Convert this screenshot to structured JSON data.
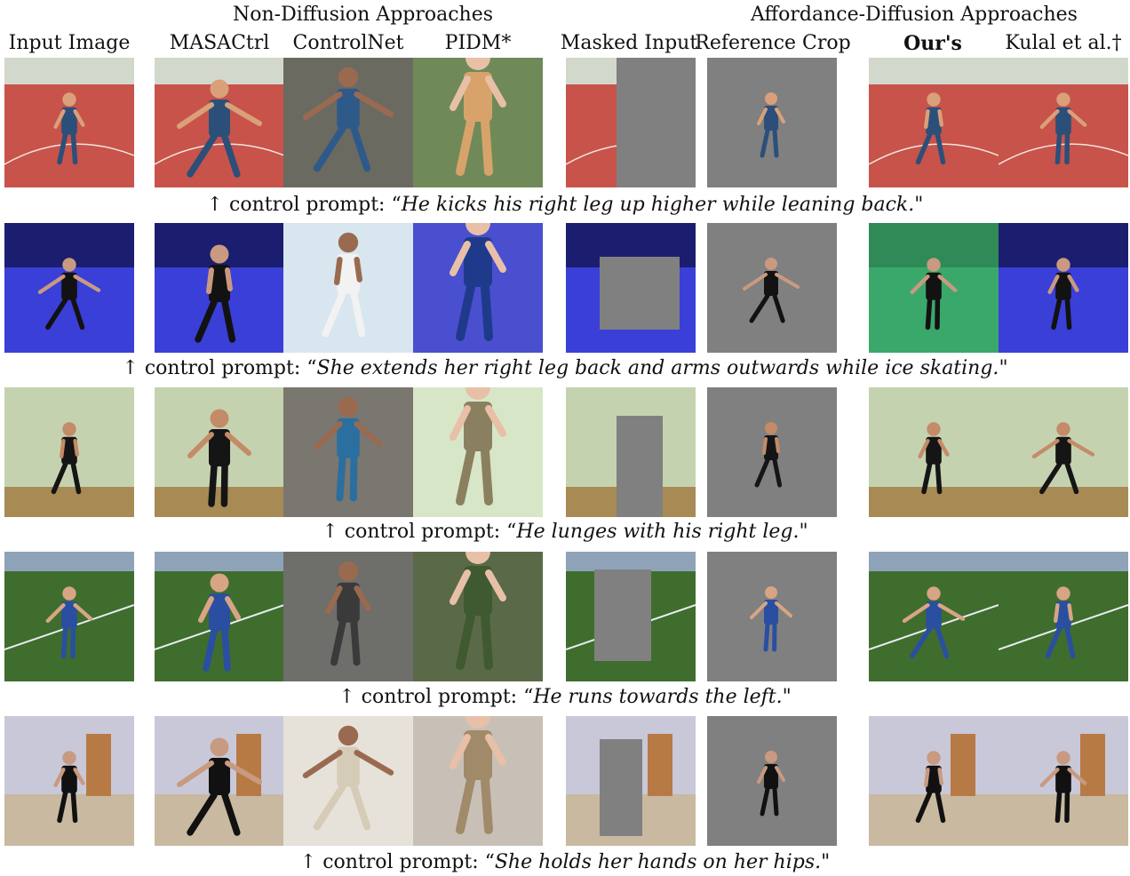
{
  "headers": {
    "groups": [
      "Non-Diffusion Approaches",
      "Affordance-Diffusion Approaches"
    ],
    "columns": [
      "Input Image",
      "MASACtrl",
      "ControlNet",
      "PIDM*",
      "Masked Input",
      "Reference Crop",
      "Our's",
      "Kulal et al.†"
    ]
  },
  "caption_prefix": "↑ control prompt: “",
  "caption_suffix": "\"",
  "rows": [
    {
      "prompt": "He kicks his right leg up higher while leaning back.",
      "scene": "track",
      "colors": {
        "bg": "#c8534a",
        "bg2": "#d96a5e",
        "body": "#2c4f7a",
        "skin": "#d9a07a"
      }
    },
    {
      "prompt": "She extends her right leg back and arms outwards while ice skating.",
      "scene": "ice",
      "colors": {
        "bg": "#3a3fd8",
        "bg2": "#2c8a5a",
        "body": "#121212",
        "skin": "#c99a80"
      }
    },
    {
      "prompt": "He lunges with his right leg.",
      "scene": "studio",
      "colors": {
        "bg": "#c5d2b0",
        "bg2": "#a88a55",
        "body": "#151515",
        "skin": "#c48b68"
      }
    },
    {
      "prompt": "He runs towards the left.",
      "scene": "field",
      "colors": {
        "bg": "#3f6d2e",
        "bg2": "#8fa3b8",
        "body": "#2a4fa0",
        "skin": "#d8a584"
      }
    },
    {
      "prompt": "She holds her hands on her hips.",
      "scene": "gym",
      "colors": {
        "bg": "#c9c8d8",
        "bg2": "#c8b9a0",
        "body": "#111111",
        "skin": "#c89a80"
      }
    }
  ]
}
